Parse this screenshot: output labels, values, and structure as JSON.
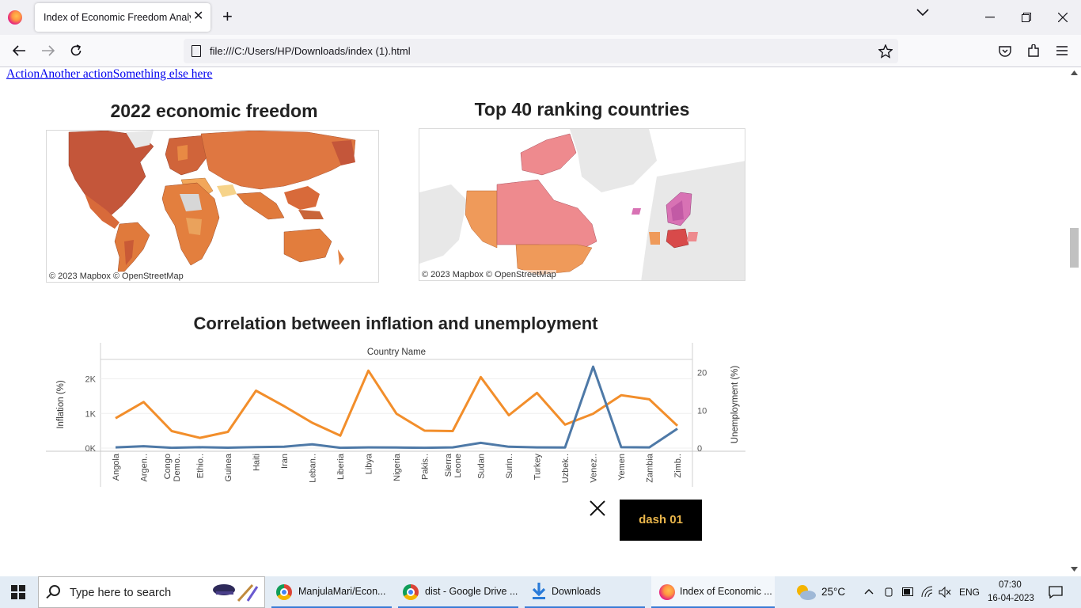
{
  "browser": {
    "tab_title": "Index of Economic Freedom Analysis",
    "tab_close": "✕",
    "new_tab": "+",
    "url": "file:///C:/Users/HP/Downloads/index (1).html"
  },
  "page": {
    "links": [
      "Action",
      "Another action",
      "Something else here"
    ],
    "map1": {
      "title": "2022 economic freedom",
      "attribution": "© 2023 Mapbox  © OpenStreetMap"
    },
    "map2": {
      "title": "Top 40 ranking countries",
      "attribution": "© 2023 Mapbox  © OpenStreetMap"
    },
    "dash_button": "dash 01"
  },
  "chart_data": {
    "type": "line",
    "title": "Correlation between inflation and unemployment",
    "xlabel": "Country Name",
    "ylabel": "Inflation (%)",
    "y2label": "Unemployment (%)",
    "categories": [
      "Angola",
      "Argen..",
      "Congo Demo..",
      "Ethio..",
      "Guinea",
      "Haiti",
      "Iran",
      "Leban..",
      "Liberia",
      "Libya",
      "Nigeria",
      "Pakis..",
      "Sierra Leone",
      "Sudan",
      "Surin..",
      "Turkey",
      "Uzbek..",
      "Venez..",
      "Yemen",
      "Zambia",
      "Zimb.."
    ],
    "yticks": [
      "0K",
      "1K",
      "2K"
    ],
    "y2ticks": [
      "0",
      "10",
      "20"
    ],
    "ylim": [
      0,
      2400
    ],
    "y2lim": [
      0,
      22
    ],
    "series": [
      {
        "name": "Unemployment (%)",
        "axis": "right",
        "color": "#f28e2b",
        "values": [
          7.9,
          12.2,
          4.5,
          2.7,
          4.3,
          15.2,
          11.1,
          6.7,
          3.3,
          20.5,
          9.1,
          4.6,
          4.5,
          18.8,
          8.7,
          14.6,
          6.2,
          9.1,
          14.0,
          12.9,
          5.9
        ]
      },
      {
        "name": "Inflation (%)",
        "axis": "left",
        "color": "#4e79a7",
        "values": [
          20,
          55,
          10,
          25,
          12,
          30,
          40,
          110,
          10,
          20,
          15,
          10,
          20,
          150,
          40,
          20,
          15,
          2350,
          25,
          20,
          560
        ]
      }
    ]
  },
  "taskbar": {
    "search_placeholder": "Type here to search",
    "apps": [
      "ManjulaMari/Econ...",
      "dist - Google Drive ...",
      "Downloads",
      "Index of Economic ..."
    ],
    "weather": "25°C",
    "lang": "ENG",
    "time": "07:30",
    "date": "16-04-2023"
  },
  "colors": {
    "accent_orange": "#f28e2b",
    "accent_blue": "#4e79a7",
    "dash_text": "#e9b54b"
  }
}
